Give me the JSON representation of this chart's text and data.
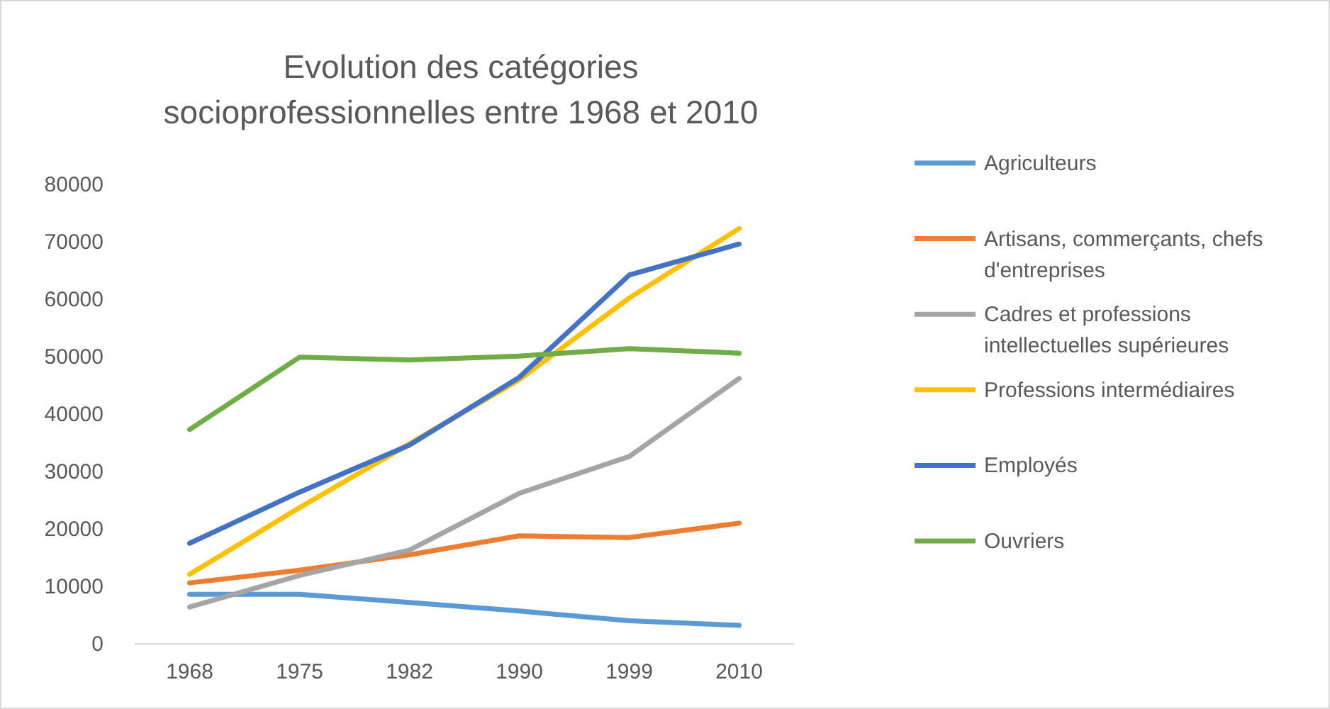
{
  "chart_data": {
    "type": "line",
    "title": "Evolution des catégories socioprofessionnelles entre 1968 et 2010",
    "categories": [
      "1968",
      "1975",
      "1982",
      "1990",
      "1999",
      "2010"
    ],
    "ylim": [
      0,
      80000
    ],
    "yticks": [
      0,
      10000,
      20000,
      30000,
      40000,
      50000,
      60000,
      70000,
      80000
    ],
    "legend": "right",
    "series": [
      {
        "name": "Agriculteurs",
        "color": "#5b9bd5",
        "values": [
          8600,
          8600,
          7200,
          5700,
          4000,
          3200
        ]
      },
      {
        "name": "Artisans, commerçants, chefs d'entreprises",
        "color": "#ed7d31",
        "values": [
          10600,
          12800,
          15500,
          18800,
          18500,
          21000
        ]
      },
      {
        "name": "Cadres et professions intellectuelles supérieures",
        "color": "#a5a5a5",
        "values": [
          6400,
          11900,
          16300,
          26200,
          32600,
          46200
        ]
      },
      {
        "name": "Professions intermédiaires",
        "color": "#ffc000",
        "values": [
          12100,
          23700,
          34800,
          46000,
          60200,
          72300
        ]
      },
      {
        "name": "Employés",
        "color": "#4472c4",
        "values": [
          17500,
          26400,
          34600,
          46400,
          64200,
          69600
        ]
      },
      {
        "name": "Ouvriers",
        "color": "#70ad47",
        "values": [
          37300,
          49900,
          49400,
          50100,
          51400,
          50600
        ]
      }
    ]
  }
}
